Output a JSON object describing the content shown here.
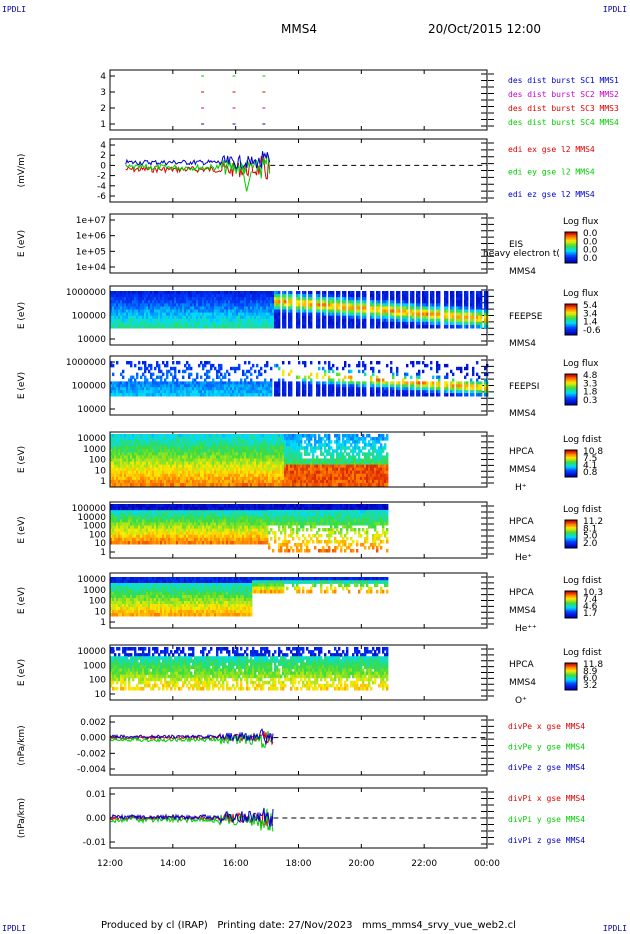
{
  "corners": {
    "tl": "IPDLI",
    "tr": "IPDLI",
    "bl": "IPDLI",
    "br": "IPDLI"
  },
  "header": {
    "spacecraft": "MMS4",
    "datetime": "20/Oct/2015 12:00"
  },
  "footer": "Produced by cl (IRAP)   Printing date: 27/Nov/2023   mms_mms4_srvy_vue_web2.cl",
  "x_axis": {
    "ticks": [
      "12:00",
      "14:00",
      "16:00",
      "18:00",
      "20:00",
      "22:00",
      "00:00"
    ]
  },
  "colors": {
    "red": "#dd0000",
    "green": "#00cc00",
    "blue": "#0000cc",
    "magenta": "#cc00cc"
  },
  "chart_data": [
    {
      "type": "line",
      "panel": "burst",
      "yticks": [
        "4",
        "3",
        "2",
        "1"
      ],
      "ylabel": "",
      "legend": [
        "des dist burst SC1 MMS1",
        "des dist burst SC2 MMS2",
        "des dist burst SC3 MMS3",
        "des dist burst SC4 MMS4"
      ]
    },
    {
      "type": "line",
      "panel": "edi",
      "yticks": [
        "4",
        "2",
        "0",
        "-2",
        "-4",
        "-6"
      ],
      "ylabel": "(mV/m)",
      "legend": [
        "edi ex gse l2 MMS4",
        "edi ey gse l2 MMS4",
        "edi ez gse l2 MMS4"
      ]
    },
    {
      "type": "heatmap",
      "panel": "eis",
      "yticks": [
        "1e+07",
        "1e+06",
        "1e+05",
        "1e+04"
      ],
      "ylabel": "E (eV)",
      "names": [
        "EIS",
        "heavy electron t(",
        "MMS4"
      ],
      "cbar_title": "Log flux",
      "cbar_ticks": [
        "0.0",
        "0.0",
        "0.0",
        "0.0"
      ]
    },
    {
      "type": "heatmap",
      "panel": "feepse",
      "yticks": [
        "1000000",
        "100000",
        "10000"
      ],
      "ylabel": "E (eV)",
      "names": [
        "FEEPSE",
        "MMS4"
      ],
      "cbar_title": "Log flux",
      "cbar_ticks": [
        "5.4",
        "3.4",
        "1.4",
        "-0.6"
      ]
    },
    {
      "type": "heatmap",
      "panel": "feepsi",
      "yticks": [
        "1000000",
        "100000",
        "10000"
      ],
      "ylabel": "E (eV)",
      "names": [
        "FEEPSI",
        "MMS4"
      ],
      "cbar_title": "Log flux",
      "cbar_ticks": [
        "4.8",
        "3.3",
        "1.8",
        "0.3"
      ]
    },
    {
      "type": "heatmap",
      "panel": "hpca_h",
      "yticks": [
        "10000",
        "1000",
        "100",
        "10",
        "1"
      ],
      "ylabel": "E (eV)",
      "names": [
        "HPCA",
        "MMS4",
        "H⁺"
      ],
      "cbar_title": "Log fdist",
      "cbar_ticks": [
        "10.8",
        "7.5",
        "4.1",
        "0.8"
      ]
    },
    {
      "type": "heatmap",
      "panel": "hpca_he",
      "yticks": [
        "100000",
        "10000",
        "1000",
        "100",
        "10",
        "1"
      ],
      "ylabel": "E (eV)",
      "names": [
        "HPCA",
        "MMS4",
        "He⁺"
      ],
      "cbar_title": "Log fdist",
      "cbar_ticks": [
        "11.2",
        "8.1",
        "5.0",
        "2.0"
      ]
    },
    {
      "type": "heatmap",
      "panel": "hpca_hepp",
      "yticks": [
        "10000",
        "1000",
        "100",
        "10",
        "1"
      ],
      "ylabel": "E (eV)",
      "names": [
        "HPCA",
        "MMS4",
        "He⁺⁺"
      ],
      "cbar_title": "Log fdist",
      "cbar_ticks": [
        "10.3",
        "7.4",
        "4.6",
        "1.7"
      ]
    },
    {
      "type": "heatmap",
      "panel": "hpca_o",
      "yticks": [
        "10000",
        "1000",
        "100",
        "10"
      ],
      "ylabel": "E (eV)",
      "names": [
        "HPCA",
        "MMS4",
        "O⁺"
      ],
      "cbar_title": "Log fdist",
      "cbar_ticks": [
        "11.8",
        "8.9",
        "6.0",
        "3.2"
      ]
    },
    {
      "type": "line",
      "panel": "divpe",
      "yticks": [
        "0.002",
        "0.000",
        "-0.002",
        "-0.004"
      ],
      "ylabel": "(nPa/km)",
      "legend": [
        "divPe x gse MMS4",
        "divPe y gse MMS4",
        "divPe z gse MMS4"
      ]
    },
    {
      "type": "line",
      "panel": "divpi",
      "yticks": [
        "0.01",
        "0.00",
        "-0.01"
      ],
      "ylabel": "(nPa/km)",
      "legend": [
        "divPi x gse MMS4",
        "divPi y gse MMS4",
        "divPi z gse MMS4"
      ]
    }
  ]
}
